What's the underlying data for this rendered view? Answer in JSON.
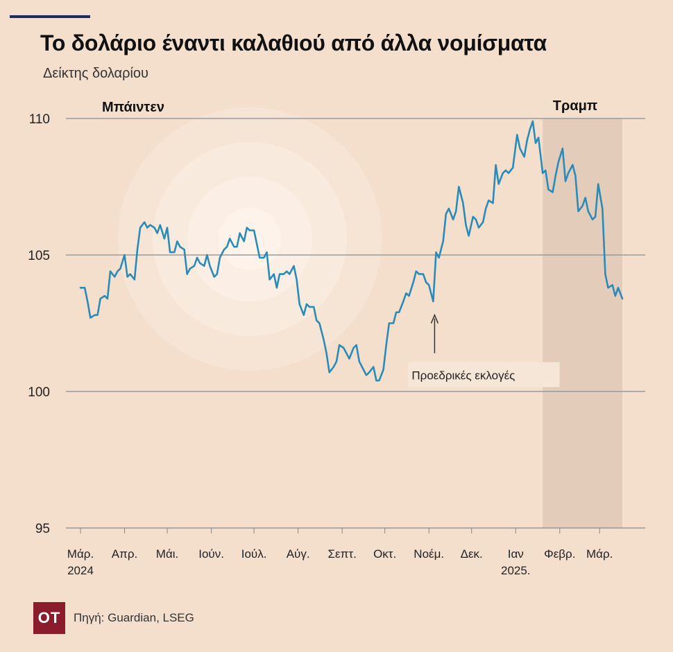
{
  "chart_data": {
    "type": "line",
    "title": "Το δολάριο έναντι καλαθιού από άλλα νομίσματα",
    "ylabel": "Δείκτης δολαρίου",
    "ylim": [
      95,
      110
    ],
    "y_ticks": [
      95,
      100,
      105,
      110
    ],
    "x_ticks": [
      {
        "date": "2024-03-01",
        "label": "Μάρ.",
        "label2": "2024"
      },
      {
        "date": "2024-04-01",
        "label": "Απρ.",
        "label2": ""
      },
      {
        "date": "2024-05-01",
        "label": "Μάι.",
        "label2": ""
      },
      {
        "date": "2024-06-01",
        "label": "Ιούν.",
        "label2": ""
      },
      {
        "date": "2024-07-01",
        "label": "Ιούλ.",
        "label2": ""
      },
      {
        "date": "2024-08-01",
        "label": "Αύγ.",
        "label2": ""
      },
      {
        "date": "2024-09-01",
        "label": "Σεπτ.",
        "label2": ""
      },
      {
        "date": "2024-10-01",
        "label": "Οκτ.",
        "label2": ""
      },
      {
        "date": "2024-11-01",
        "label": "Νοέμ.",
        "label2": ""
      },
      {
        "date": "2024-12-01",
        "label": "Δεκ.",
        "label2": ""
      },
      {
        "date": "2025-01-01",
        "label": "Ιαν",
        "label2": "2025."
      },
      {
        "date": "2025-02-01",
        "label": "Φεβρ.",
        "label2": ""
      },
      {
        "date": "2025-03-01",
        "label": "Μάρ.",
        "label2": ""
      }
    ],
    "grid": "horizontal",
    "series": [
      {
        "color": "#2a8ab8",
        "points": [
          [
            "2024-03-01",
            103.8
          ],
          [
            "2024-03-04",
            103.8
          ],
          [
            "2024-03-06",
            103.3
          ],
          [
            "2024-03-08",
            102.7
          ],
          [
            "2024-03-11",
            102.8
          ],
          [
            "2024-03-13",
            102.8
          ],
          [
            "2024-03-15",
            103.4
          ],
          [
            "2024-03-18",
            103.5
          ],
          [
            "2024-03-20",
            103.4
          ],
          [
            "2024-03-22",
            104.4
          ],
          [
            "2024-03-25",
            104.2
          ],
          [
            "2024-03-27",
            104.4
          ],
          [
            "2024-03-29",
            104.5
          ],
          [
            "2024-04-01",
            105.0
          ],
          [
            "2024-04-03",
            104.2
          ],
          [
            "2024-04-05",
            104.3
          ],
          [
            "2024-04-08",
            104.1
          ],
          [
            "2024-04-10",
            105.2
          ],
          [
            "2024-04-12",
            106.0
          ],
          [
            "2024-04-15",
            106.2
          ],
          [
            "2024-04-17",
            106.0
          ],
          [
            "2024-04-19",
            106.1
          ],
          [
            "2024-04-22",
            106.0
          ],
          [
            "2024-04-24",
            105.8
          ],
          [
            "2024-04-26",
            106.1
          ],
          [
            "2024-04-29",
            105.6
          ],
          [
            "2024-05-01",
            106.0
          ],
          [
            "2024-05-03",
            105.1
          ],
          [
            "2024-05-06",
            105.1
          ],
          [
            "2024-05-08",
            105.5
          ],
          [
            "2024-05-10",
            105.3
          ],
          [
            "2024-05-13",
            105.2
          ],
          [
            "2024-05-15",
            104.3
          ],
          [
            "2024-05-17",
            104.5
          ],
          [
            "2024-05-20",
            104.6
          ],
          [
            "2024-05-22",
            104.9
          ],
          [
            "2024-05-24",
            104.7
          ],
          [
            "2024-05-27",
            104.6
          ],
          [
            "2024-05-29",
            105.0
          ],
          [
            "2024-05-31",
            104.6
          ],
          [
            "2024-06-03",
            104.2
          ],
          [
            "2024-06-05",
            104.3
          ],
          [
            "2024-06-07",
            104.9
          ],
          [
            "2024-06-10",
            105.2
          ],
          [
            "2024-06-12",
            105.3
          ],
          [
            "2024-06-14",
            105.6
          ],
          [
            "2024-06-17",
            105.3
          ],
          [
            "2024-06-19",
            105.3
          ],
          [
            "2024-06-21",
            105.8
          ],
          [
            "2024-06-24",
            105.5
          ],
          [
            "2024-06-26",
            106.0
          ],
          [
            "2024-06-28",
            105.9
          ],
          [
            "2024-07-01",
            105.9
          ],
          [
            "2024-07-03",
            105.4
          ],
          [
            "2024-07-05",
            104.9
          ],
          [
            "2024-07-08",
            104.9
          ],
          [
            "2024-07-10",
            105.1
          ],
          [
            "2024-07-12",
            104.1
          ],
          [
            "2024-07-15",
            104.3
          ],
          [
            "2024-07-17",
            103.8
          ],
          [
            "2024-07-19",
            104.3
          ],
          [
            "2024-07-22",
            104.3
          ],
          [
            "2024-07-24",
            104.4
          ],
          [
            "2024-07-26",
            104.3
          ],
          [
            "2024-07-29",
            104.6
          ],
          [
            "2024-07-31",
            104.1
          ],
          [
            "2024-08-02",
            103.2
          ],
          [
            "2024-08-05",
            102.8
          ],
          [
            "2024-08-07",
            103.2
          ],
          [
            "2024-08-09",
            103.1
          ],
          [
            "2024-08-12",
            103.1
          ],
          [
            "2024-08-14",
            102.6
          ],
          [
            "2024-08-16",
            102.5
          ],
          [
            "2024-08-19",
            101.9
          ],
          [
            "2024-08-21",
            101.4
          ],
          [
            "2024-08-23",
            100.7
          ],
          [
            "2024-08-26",
            100.9
          ],
          [
            "2024-08-28",
            101.1
          ],
          [
            "2024-08-30",
            101.7
          ],
          [
            "2024-09-02",
            101.6
          ],
          [
            "2024-09-04",
            101.4
          ],
          [
            "2024-09-06",
            101.2
          ],
          [
            "2024-09-09",
            101.6
          ],
          [
            "2024-09-11",
            101.7
          ],
          [
            "2024-09-13",
            101.1
          ],
          [
            "2024-09-16",
            100.8
          ],
          [
            "2024-09-18",
            100.6
          ],
          [
            "2024-09-20",
            100.7
          ],
          [
            "2024-09-23",
            100.9
          ],
          [
            "2024-09-25",
            100.4
          ],
          [
            "2024-09-27",
            100.4
          ],
          [
            "2024-09-30",
            100.8
          ],
          [
            "2024-10-02",
            101.7
          ],
          [
            "2024-10-04",
            102.5
          ],
          [
            "2024-10-07",
            102.5
          ],
          [
            "2024-10-09",
            102.9
          ],
          [
            "2024-10-11",
            102.9
          ],
          [
            "2024-10-14",
            103.3
          ],
          [
            "2024-10-16",
            103.6
          ],
          [
            "2024-10-18",
            103.5
          ],
          [
            "2024-10-21",
            104.0
          ],
          [
            "2024-10-23",
            104.4
          ],
          [
            "2024-10-25",
            104.3
          ],
          [
            "2024-10-28",
            104.3
          ],
          [
            "2024-10-30",
            104.0
          ],
          [
            "2024-11-01",
            103.9
          ],
          [
            "2024-11-04",
            103.3
          ],
          [
            "2024-11-06",
            105.1
          ],
          [
            "2024-11-08",
            104.9
          ],
          [
            "2024-11-11",
            105.5
          ],
          [
            "2024-11-13",
            106.5
          ],
          [
            "2024-11-15",
            106.7
          ],
          [
            "2024-11-18",
            106.3
          ],
          [
            "2024-11-20",
            106.6
          ],
          [
            "2024-11-22",
            107.5
          ],
          [
            "2024-11-25",
            106.9
          ],
          [
            "2024-11-27",
            106.1
          ],
          [
            "2024-11-29",
            105.7
          ],
          [
            "2024-12-02",
            106.4
          ],
          [
            "2024-12-04",
            106.3
          ],
          [
            "2024-12-06",
            106.0
          ],
          [
            "2024-12-09",
            106.2
          ],
          [
            "2024-12-11",
            106.7
          ],
          [
            "2024-12-13",
            107.0
          ],
          [
            "2024-12-16",
            106.9
          ],
          [
            "2024-12-18",
            108.3
          ],
          [
            "2024-12-20",
            107.6
          ],
          [
            "2024-12-23",
            108.0
          ],
          [
            "2024-12-25",
            108.1
          ],
          [
            "2024-12-27",
            108.0
          ],
          [
            "2024-12-30",
            108.2
          ],
          [
            "2025-01-02",
            109.4
          ],
          [
            "2025-01-04",
            108.9
          ],
          [
            "2025-01-07",
            108.6
          ],
          [
            "2025-01-09",
            109.2
          ],
          [
            "2025-01-11",
            109.6
          ],
          [
            "2025-01-13",
            109.9
          ],
          [
            "2025-01-15",
            109.1
          ],
          [
            "2025-01-17",
            109.3
          ],
          [
            "2025-01-20",
            108.0
          ],
          [
            "2025-01-22",
            108.1
          ],
          [
            "2025-01-24",
            107.4
          ],
          [
            "2025-01-27",
            107.3
          ],
          [
            "2025-01-29",
            107.9
          ],
          [
            "2025-01-31",
            108.4
          ],
          [
            "2025-02-03",
            108.9
          ],
          [
            "2025-02-05",
            107.7
          ],
          [
            "2025-02-07",
            108.0
          ],
          [
            "2025-02-10",
            108.3
          ],
          [
            "2025-02-12",
            107.9
          ],
          [
            "2025-02-14",
            106.6
          ],
          [
            "2025-02-17",
            106.8
          ],
          [
            "2025-02-19",
            107.1
          ],
          [
            "2025-02-21",
            106.6
          ],
          [
            "2025-02-24",
            106.3
          ],
          [
            "2025-02-26",
            106.4
          ],
          [
            "2025-02-28",
            107.6
          ],
          [
            "2025-03-03",
            106.7
          ],
          [
            "2025-03-05",
            104.3
          ],
          [
            "2025-03-07",
            103.8
          ],
          [
            "2025-03-10",
            103.9
          ],
          [
            "2025-03-12",
            103.5
          ],
          [
            "2025-03-14",
            103.8
          ],
          [
            "2025-03-17",
            103.4
          ]
        ]
      }
    ],
    "periods": [
      {
        "label": "Μπάιντεν",
        "start": "2024-03-01",
        "end": "2025-01-20"
      },
      {
        "label": "Τραμπ",
        "start": "2025-01-20",
        "end": "2025-03-17"
      }
    ],
    "annotations": [
      {
        "label": "Προεδρικές εκλογές",
        "date": "2024-11-05",
        "value": 102.8
      }
    ]
  },
  "source": "Πηγή: Guardian, LSEG",
  "logo_text": "OT"
}
